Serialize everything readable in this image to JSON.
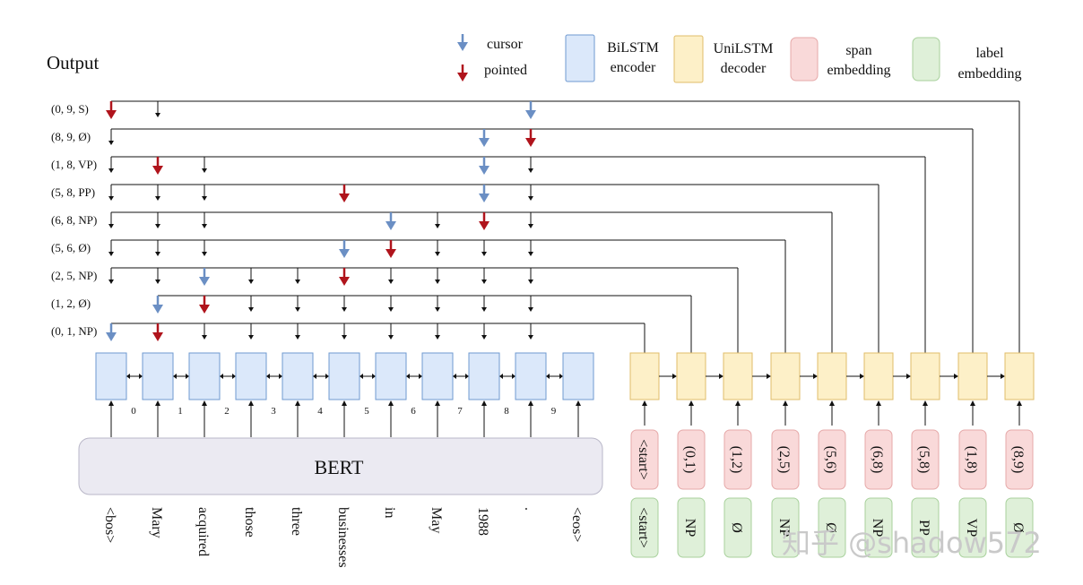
{
  "title": "Output",
  "legend": {
    "cursor": "cursor",
    "pointed": "pointed",
    "bilstm": [
      "BiLSTM",
      "encoder"
    ],
    "unilstm": [
      "UniLSTM",
      "decoder"
    ],
    "span": [
      "span",
      "embedding"
    ],
    "label": [
      "label",
      "embedding"
    ]
  },
  "output_rows": [
    {
      "label": "(0, 9, S)",
      "targets": [
        0,
        1,
        9
      ],
      "blue": 9,
      "red": 0
    },
    {
      "label": "(8, 9, Ø)",
      "targets": [
        0,
        8,
        9
      ],
      "blue": 8,
      "red": 9
    },
    {
      "label": "(1, 8, VP)",
      "targets": [
        0,
        1,
        2,
        8,
        9
      ],
      "blue": 8,
      "red": 1
    },
    {
      "label": "(5, 8, PP)",
      "targets": [
        0,
        1,
        2,
        5,
        8,
        9
      ],
      "blue": 8,
      "red": 5
    },
    {
      "label": "(6, 8, NP)",
      "targets": [
        0,
        1,
        2,
        6,
        7,
        8,
        9
      ],
      "blue": 6,
      "red": 8
    },
    {
      "label": "(5, 6, Ø)",
      "targets": [
        0,
        1,
        2,
        5,
        6,
        7,
        8,
        9
      ],
      "blue": 5,
      "red": 6
    },
    {
      "label": "(2, 5, NP)",
      "targets": [
        0,
        1,
        2,
        3,
        4,
        5,
        6,
        7,
        8,
        9
      ],
      "blue": 2,
      "red": 5
    },
    {
      "label": "(1, 2, Ø)",
      "targets": [
        1,
        2,
        3,
        4,
        5,
        6,
        7,
        8,
        9
      ],
      "blue": 1,
      "red": 2
    },
    {
      "label": "(0, 1, NP)",
      "targets": [
        0,
        1,
        2,
        3,
        4,
        5,
        6,
        7,
        8,
        9
      ],
      "blue": 0,
      "red": 1
    }
  ],
  "position_indices": [
    "0",
    "1",
    "2",
    "3",
    "4",
    "5",
    "6",
    "7",
    "8",
    "9"
  ],
  "bert_label": "BERT",
  "tokens": [
    "<bos>",
    "Mary",
    "acquired",
    "those",
    "three",
    "businesses",
    "in",
    "May",
    "1988",
    ".",
    "<eos>"
  ],
  "span_inputs": [
    "<start>",
    "(0,1)",
    "(1,2)",
    "(2,5)",
    "(5,6)",
    "(6,8)",
    "(5,8)",
    "(1,8)",
    "(8,9)"
  ],
  "label_inputs": [
    "<start>",
    "NP",
    "Ø",
    "NP",
    "Ø",
    "NP",
    "PP",
    "VP",
    "Ø"
  ],
  "watermark": "知乎 @shadow572",
  "colors": {
    "cursor_arrow": "#6b8fc4",
    "pointed_arrow": "#b0141c",
    "bilstm_fill": "#dbe8fa",
    "unilstm_fill": "#fdf0c8",
    "span_fill": "#f9d9d9",
    "label_fill": "#dff0d9"
  }
}
